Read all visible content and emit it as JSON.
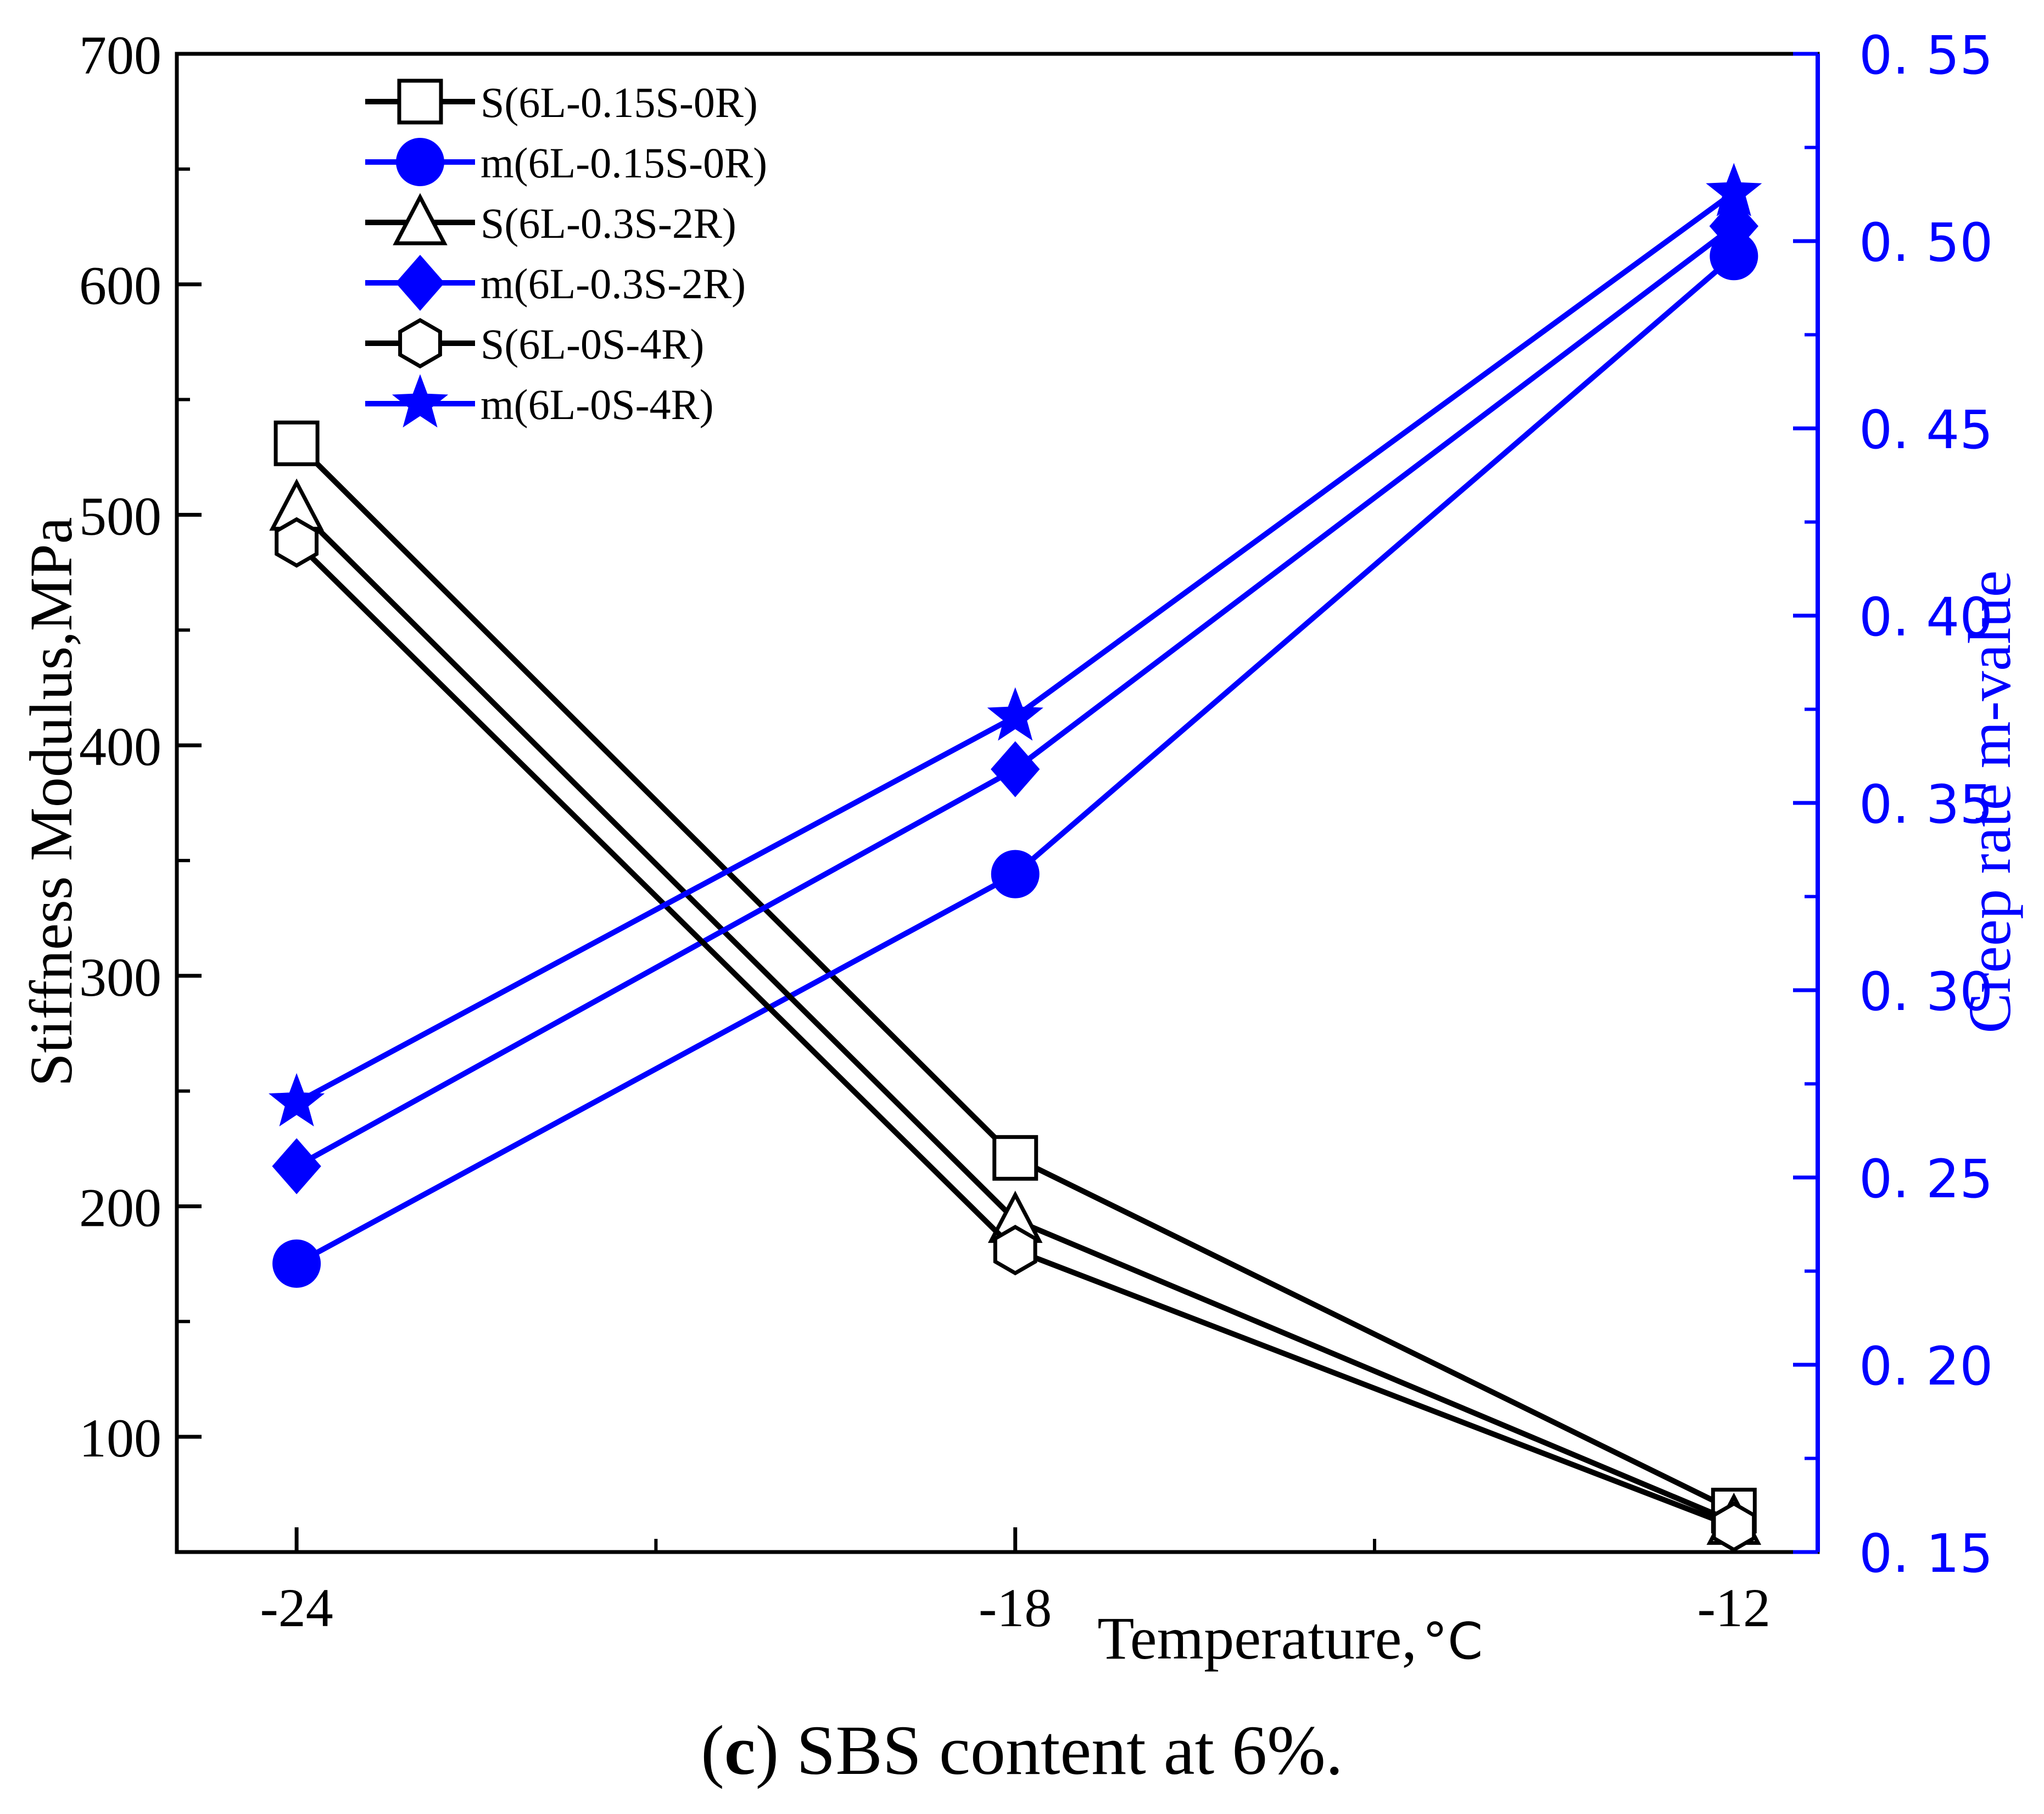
{
  "chart_data": {
    "type": "line",
    "caption": {
      "letter": "c",
      "open": "(",
      "close": ")",
      "text": " SBS content at 6%."
    },
    "xlabel": "Temperature,",
    "xlabel_unit": "°C",
    "ylabel_left": "Stiffness Modulus,MPa",
    "ylabel_right": "Creep rate m-value",
    "x": [
      -24,
      -18,
      -12
    ],
    "xlim": [
      -25,
      -11.3
    ],
    "x_ticks": [
      -24,
      -18,
      -12
    ],
    "x_tick_labels": [
      "-24",
      "-18",
      "-12"
    ],
    "ylim_left": [
      50,
      700
    ],
    "y_ticks_left": [
      100,
      200,
      300,
      400,
      500,
      600,
      700
    ],
    "y_tick_labels_left": [
      "100",
      "200",
      "300",
      "400",
      "500",
      "600",
      "700"
    ],
    "ylim_right": [
      0.15,
      0.55
    ],
    "y_ticks_right": [
      0.15,
      0.2,
      0.25,
      0.3,
      0.35,
      0.4,
      0.45,
      0.5,
      0.55
    ],
    "y_tick_labels_right": [
      "0. 15",
      "0. 20",
      "0. 25",
      "0. 30",
      "0. 35",
      "0. 40",
      "0. 45",
      "0. 50",
      "0. 55"
    ],
    "legend_position": "top-left",
    "series": [
      {
        "name": "S(6L-0.15S-0R)",
        "axis": "left",
        "marker": "square",
        "filled": false,
        "color": "#000000",
        "values": [
          531,
          221,
          68
        ]
      },
      {
        "name": "m(6L-0.15S-0R)",
        "axis": "right",
        "marker": "circle",
        "filled": true,
        "color": "#0000ff",
        "values": [
          0.227,
          0.331,
          0.496
        ]
      },
      {
        "name": "S(6L-0.3S-2R)",
        "axis": "left",
        "marker": "triangle",
        "filled": false,
        "color": "#000000",
        "values": [
          503,
          194,
          63
        ]
      },
      {
        "name": "m(6L-0.3S-2R)",
        "axis": "right",
        "marker": "diamond",
        "filled": true,
        "color": "#0000ff",
        "values": [
          0.253,
          0.359,
          0.504
        ]
      },
      {
        "name": "S(6L-0S-4R)",
        "axis": "left",
        "marker": "hexagon",
        "filled": false,
        "color": "#000000",
        "values": [
          488,
          181,
          61
        ]
      },
      {
        "name": "m(6L-0S-4R)",
        "axis": "right",
        "marker": "star",
        "filled": true,
        "color": "#0000ff",
        "values": [
          0.27,
          0.373,
          0.513
        ]
      }
    ]
  }
}
